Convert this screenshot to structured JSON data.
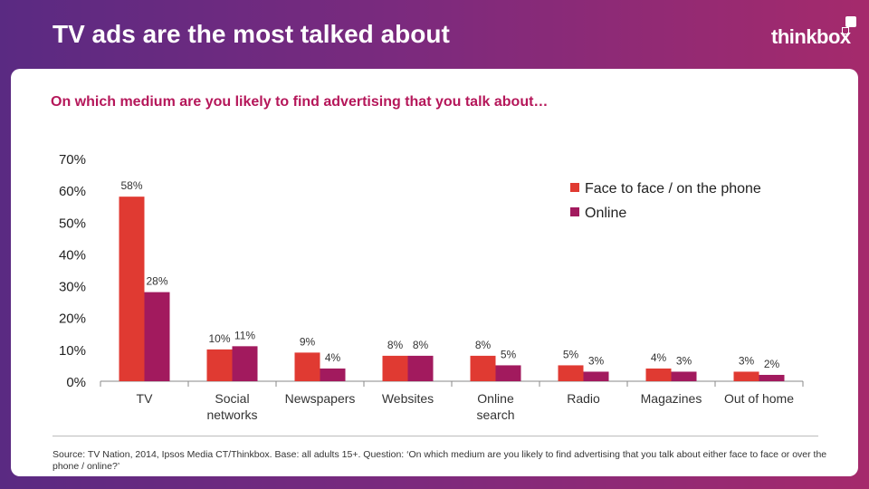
{
  "header": {
    "title": "TV ads are the most talked about",
    "logo": "thinkbox"
  },
  "question": "On which medium are you likely to find advertising that you talk about…",
  "source": "Source: TV Nation, 2014, Ipsos Media CT/Thinkbox. Base: all adults 15+. Question: ‘On which medium are you likely to find advertising that you talk about either face to face or over the phone / online?’",
  "colors": {
    "background_start": "#5a2a82",
    "background_end": "#a52a6c",
    "question": "#b5175a",
    "face_to_face": "#e03a32",
    "online": "#a21a5e"
  },
  "chart_data": {
    "type": "bar",
    "categories": [
      "TV",
      "Social networks",
      "Newspapers",
      "Websites",
      "Online search",
      "Radio",
      "Magazines",
      "Out of home"
    ],
    "category_lines": [
      [
        "TV"
      ],
      [
        "Social",
        "networks"
      ],
      [
        "Newspapers"
      ],
      [
        "Websites"
      ],
      [
        "Online",
        "search"
      ],
      [
        "Radio"
      ],
      [
        "Magazines"
      ],
      [
        "Out of home"
      ]
    ],
    "series": [
      {
        "name": "Face to face / on the phone",
        "values": [
          58,
          10,
          9,
          8,
          8,
          5,
          4,
          3
        ],
        "color": "#e03a32"
      },
      {
        "name": "Online",
        "values": [
          28,
          11,
          4,
          8,
          5,
          3,
          3,
          2
        ],
        "color": "#a21a5e"
      }
    ],
    "ylim": [
      0,
      70
    ],
    "yticks": [
      "0%",
      "10%",
      "20%",
      "30%",
      "40%",
      "50%",
      "60%",
      "70%"
    ],
    "data_labels": [
      [
        "58%",
        "10%",
        "9%",
        "8%",
        "8%",
        "5%",
        "4%",
        "3%"
      ],
      [
        "28%",
        "11%",
        "4%",
        "8%",
        "5%",
        "3%",
        "3%",
        "2%"
      ]
    ],
    "legend_position": "top-right",
    "grid": false
  }
}
